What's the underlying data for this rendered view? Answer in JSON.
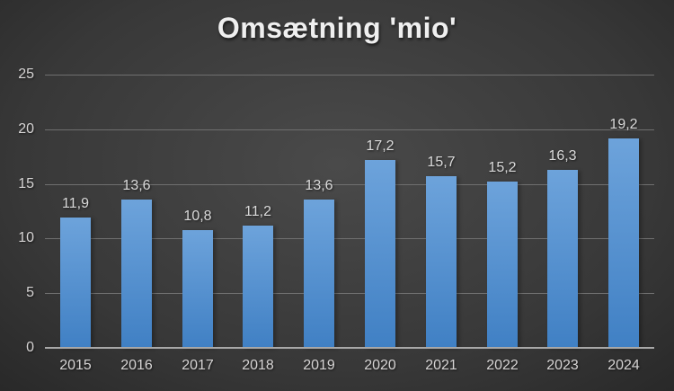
{
  "chart_data": {
    "type": "bar",
    "title": "Omsætning 'mio'",
    "categories": [
      "2015",
      "2016",
      "2017",
      "2018",
      "2019",
      "2020",
      "2021",
      "2022",
      "2023",
      "2024"
    ],
    "values": [
      11.9,
      13.6,
      10.8,
      11.2,
      13.6,
      17.2,
      15.7,
      15.2,
      16.3,
      19.2
    ],
    "value_labels": [
      "11,9",
      "13,6",
      "10,8",
      "11,2",
      "13,6",
      "17,2",
      "15,7",
      "15,2",
      "16,3",
      "19,2"
    ],
    "yticks": [
      0,
      5,
      10,
      15,
      20,
      25
    ],
    "ytick_labels": [
      "0",
      "5",
      "10",
      "15",
      "20",
      "25"
    ],
    "ylim": [
      0,
      25
    ],
    "xlabel": "",
    "ylabel": "",
    "grid": true,
    "legend": false,
    "decimal_separator": ","
  },
  "colors": {
    "background_center": "#4a4a4a",
    "background_mid": "#383838",
    "background_edge": "#1e1e1e",
    "bar_top": "#6da3db",
    "bar_bottom": "#4080c4",
    "gridline": "#6f6f6f",
    "axis_line": "#a8a8a8",
    "tick_label": "#d6d4d4",
    "data_label": "#dadada",
    "title_color": "#efefef"
  }
}
